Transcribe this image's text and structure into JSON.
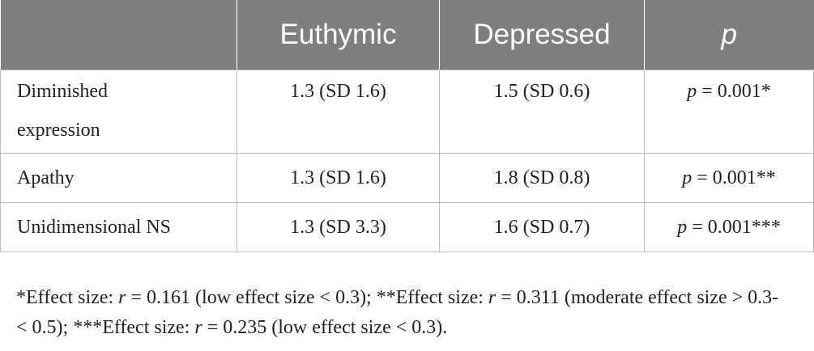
{
  "table": {
    "headers": [
      "",
      "Euthymic",
      "Depressed",
      "p"
    ],
    "rows": [
      {
        "label_line1": "Diminished",
        "label_line2": "expression",
        "euthymic": "1.3 (SD 1.6)",
        "depressed": "1.5 (SD 0.6)",
        "p_symbol": "p",
        "p_value": " = 0.001*"
      },
      {
        "label": "Apathy",
        "euthymic": "1.3 (SD 1.6)",
        "depressed": "1.8 (SD 0.8)",
        "p_symbol": "p",
        "p_value": " = 0.001**"
      },
      {
        "label": "Unidimensional NS",
        "euthymic": "1.3 (SD 3.3)",
        "depressed": "1.6 (SD 0.7)",
        "p_symbol": "p",
        "p_value": " = 0.001***"
      }
    ]
  },
  "footnote": {
    "part1": "*Effect size: ",
    "r1": "r",
    "part2": " = 0.161 (low effect size < 0.3); **Effect size: ",
    "r2": "r",
    "part3": " = 0.311 (moderate effect size > 0.3- < 0.5); ***Effect size: ",
    "r3": "r",
    "part4": " = 0.235 (low effect size < 0.3)."
  },
  "colors": {
    "header_bg": "#7f7f7f",
    "header_text": "#ffffff",
    "border": "#bdbdbd",
    "text": "#222222"
  }
}
